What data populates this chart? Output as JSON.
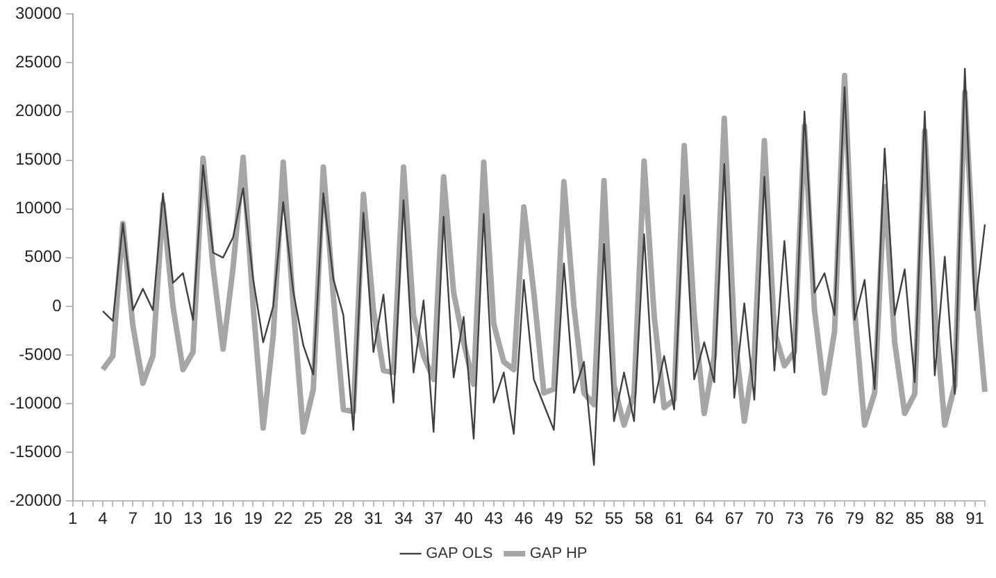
{
  "chart_data": {
    "type": "line",
    "categories": [
      "1",
      null,
      null,
      "4",
      null,
      null,
      "7",
      null,
      null,
      "10",
      null,
      null,
      "13",
      null,
      null,
      "16",
      null,
      null,
      "19",
      null,
      null,
      "22",
      null,
      null,
      "25",
      null,
      null,
      "28",
      null,
      null,
      "31",
      null,
      null,
      "34",
      null,
      null,
      "37",
      null,
      null,
      "40",
      null,
      null,
      "43",
      null,
      null,
      "46",
      null,
      null,
      "49",
      null,
      null,
      "52",
      null,
      null,
      "55",
      null,
      null,
      "58",
      null,
      null,
      "61",
      null,
      null,
      "64",
      null,
      null,
      "67",
      null,
      null,
      "70",
      null,
      null,
      "73",
      null,
      null,
      "76",
      null,
      null,
      "79",
      null,
      null,
      "82",
      null,
      null,
      "85",
      null,
      null,
      "88",
      null,
      null,
      "91",
      null
    ],
    "series": [
      {
        "name": "GAP HP",
        "color": "#a6a6a6",
        "values": [
          null,
          null,
          null,
          -6500,
          -5100,
          8500,
          -2000,
          -7900,
          -5100,
          10500,
          0,
          -6500,
          -4700,
          15200,
          4000,
          -4400,
          4000,
          15300,
          0,
          -12500,
          -3000,
          14800,
          0,
          -12900,
          -8500,
          14300,
          1000,
          -10600,
          -10800,
          11500,
          -400,
          -6600,
          -6800,
          14300,
          -900,
          -5100,
          -7500,
          13300,
          1400,
          -3700,
          -8000,
          14800,
          -1800,
          -5700,
          -6500,
          10200,
          1400,
          -8900,
          -8500,
          12800,
          0,
          -8900,
          -10100,
          12900,
          -8100,
          -12200,
          -9000,
          14900,
          -900,
          -10400,
          -9600,
          16500,
          -900,
          -11000,
          -5100,
          19300,
          -2600,
          -11800,
          -5000,
          17000,
          -2600,
          -6100,
          -4700,
          18500,
          -400,
          -8900,
          -2600,
          23700,
          -400,
          -12200,
          -8900,
          12300,
          -3700,
          -11000,
          -9000,
          18000,
          -400,
          -12200,
          -8100,
          22000,
          2600,
          -8800
        ]
      },
      {
        "name": "GAP OLS",
        "color": "#404040",
        "values": [
          null,
          null,
          null,
          -500,
          -1500,
          8500,
          -400,
          1800,
          -400,
          11600,
          2400,
          3400,
          -1400,
          14500,
          5500,
          5000,
          7100,
          12100,
          2800,
          -3700,
          0,
          10700,
          1500,
          -4000,
          -7000,
          11600,
          2800,
          -900,
          -12700,
          9600,
          -4700,
          1200,
          -9900,
          10900,
          -6800,
          600,
          -12900,
          9200,
          -7300,
          -1100,
          -13600,
          9500,
          -9900,
          -6800,
          -13100,
          2700,
          -7500,
          -10100,
          -12700,
          4400,
          -8900,
          -5700,
          -16300,
          6400,
          -11800,
          -6800,
          -11800,
          7400,
          -9900,
          -5100,
          -10600,
          11400,
          -7500,
          -3700,
          -7800,
          14600,
          -9400,
          300,
          -9600,
          13300,
          -6600,
          6700,
          -6800,
          20000,
          1400,
          3400,
          -900,
          22500,
          -1400,
          2700,
          -8500,
          16200,
          -900,
          3800,
          -7800,
          20000,
          -7100,
          5100,
          -9000,
          24400,
          -400,
          8400
        ]
      }
    ],
    "ylim": [
      -20000,
      30000
    ],
    "yticks": [
      -20000,
      -15000,
      -10000,
      -5000,
      0,
      5000,
      10000,
      15000,
      20000,
      25000,
      30000
    ],
    "legend": "bottom",
    "grid": false,
    "marker": "none"
  }
}
